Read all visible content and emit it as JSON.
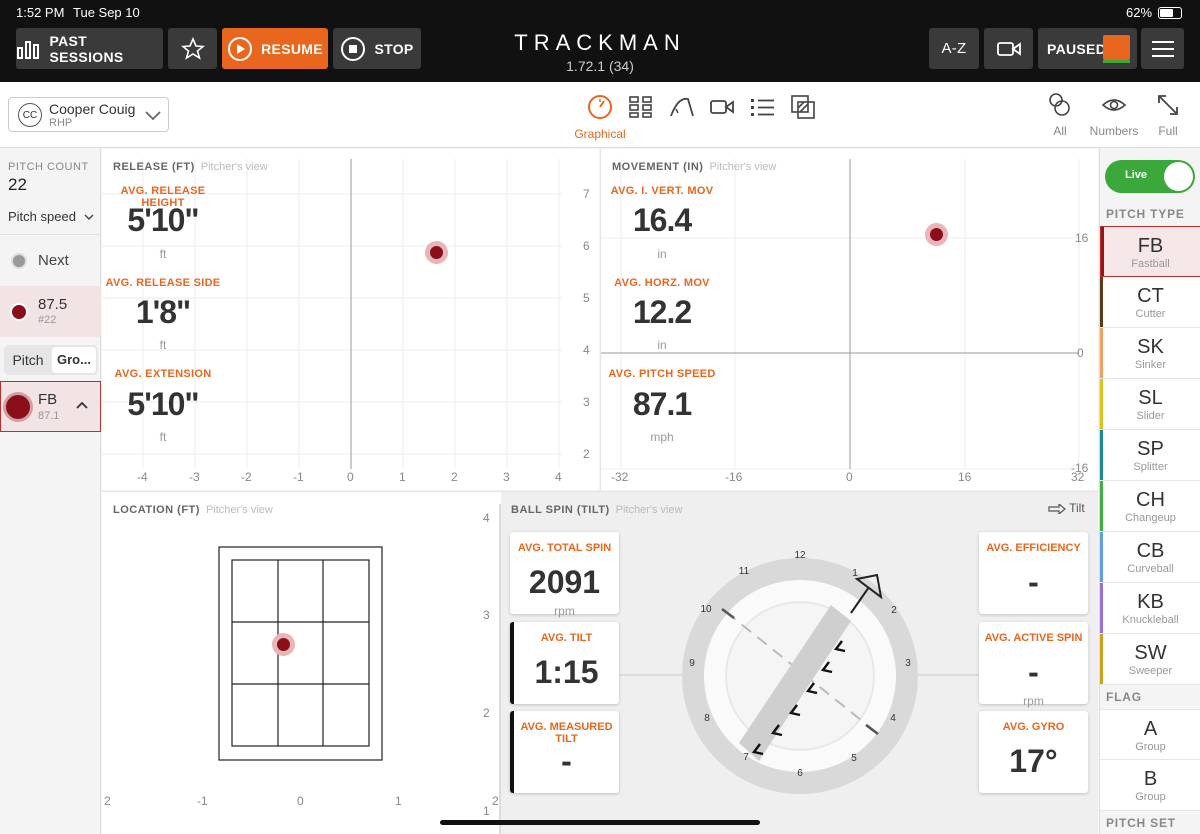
{
  "status_bar": {
    "time": "1:52 PM",
    "date": "Tue Sep 10",
    "battery": "62%"
  },
  "toolbar": {
    "past_sessions": "PAST SESSIONS",
    "resume": "RESUME",
    "stop": "STOP",
    "brand": "TRACKMAN",
    "version": "1.72.1 (34)",
    "az": "A-Z",
    "paused": "PAUSED"
  },
  "player": {
    "initials": "CC",
    "name": "Cooper Couig",
    "hand": "RHP"
  },
  "views": {
    "active_label": "Graphical"
  },
  "right_tools": {
    "all": "All",
    "numbers": "Numbers",
    "full": "Full"
  },
  "left": {
    "pitch_count_label": "PITCH COUNT",
    "pitch_count": "22",
    "metric": "Pitch speed",
    "next": "Next",
    "last_value": "87.5",
    "last_num": "#22",
    "tab_pitch": "Pitch",
    "tab_group": "Gro...",
    "group_code": "FB",
    "group_value": "87.1"
  },
  "release": {
    "title": "RELEASE (FT)",
    "sub": "Pitcher's view",
    "height_label": "AVG. RELEASE HEIGHT",
    "height": "5'10\"",
    "height_unit": "ft",
    "side_label": "AVG. RELEASE SIDE",
    "side": "1'8\"",
    "side_unit": "ft",
    "ext_label": "AVG. EXTENSION",
    "ext": "5'10\"",
    "ext_unit": "ft",
    "xticks": [
      "-4",
      "-3",
      "-2",
      "-1",
      "0",
      "1",
      "2",
      "3",
      "4"
    ],
    "yticks": [
      "7",
      "6",
      "5",
      "4",
      "3",
      "2"
    ]
  },
  "movement": {
    "title": "MOVEMENT (IN)",
    "sub": "Pitcher's view",
    "ivb_label": "AVG. I. VERT. MOV",
    "ivb": "16.4",
    "ivb_unit": "in",
    "hb_label": "AVG. HORZ. MOV",
    "hb": "12.2",
    "hb_unit": "in",
    "speed_label": "AVG. PITCH SPEED",
    "speed": "87.1",
    "speed_unit": "mph",
    "xticks": [
      "-32",
      "-16",
      "0",
      "16",
      "32"
    ],
    "yticks": [
      "16",
      "0",
      "-16"
    ]
  },
  "location": {
    "title": "LOCATION (FT)",
    "sub": "Pitcher's view",
    "xticks": [
      "2",
      "-1",
      "0",
      "1",
      "2"
    ],
    "yticks": [
      "4",
      "3",
      "2",
      "1"
    ]
  },
  "spin": {
    "title": "BALL SPIN (TILT)",
    "sub": "Pitcher's view",
    "tilt_toggle": "Tilt",
    "total_label": "AVG. TOTAL SPIN",
    "total": "2091",
    "total_unit": "rpm",
    "tilt_label": "AVG. TILT",
    "tilt": "1:15",
    "mtilt_label": "AVG. MEASURED TILT",
    "mtilt": "-",
    "eff_label": "AVG. EFFICIENCY",
    "eff": "-",
    "active_label": "AVG. ACTIVE SPIN",
    "active": "-",
    "active_unit": "rpm",
    "gyro_label": "AVG. GYRO",
    "gyro": "17°",
    "clock": [
      "12",
      "1",
      "2",
      "3",
      "4",
      "5",
      "6",
      "7",
      "8",
      "9",
      "10",
      "11"
    ]
  },
  "sidebar": {
    "live": "Live",
    "pitch_type_label": "PITCH TYPE",
    "types": [
      {
        "code": "FB",
        "name": "Fastball",
        "color": "#8b1a1a"
      },
      {
        "code": "CT",
        "name": "Cutter",
        "color": "#5a3a1a"
      },
      {
        "code": "SK",
        "name": "Sinker",
        "color": "#f0a060"
      },
      {
        "code": "SL",
        "name": "Slider",
        "color": "#e0c020"
      },
      {
        "code": "SP",
        "name": "Splitter",
        "color": "#1a8a9a"
      },
      {
        "code": "CH",
        "name": "Changeup",
        "color": "#40b040"
      },
      {
        "code": "CB",
        "name": "Curveball",
        "color": "#60a0e0"
      },
      {
        "code": "KB",
        "name": "Knuckleball",
        "color": "#9a70d0"
      },
      {
        "code": "SW",
        "name": "Sweeper",
        "color": "#d0a020"
      }
    ],
    "flag_label": "FLAG",
    "flags": [
      {
        "code": "A",
        "name": "Group"
      },
      {
        "code": "B",
        "name": "Group"
      }
    ],
    "pitch_set_label": "PITCH SET"
  },
  "colors": {
    "accent": "#e8661e",
    "pitch_dot": "#8b0f1a",
    "live": "#3aa83a"
  }
}
